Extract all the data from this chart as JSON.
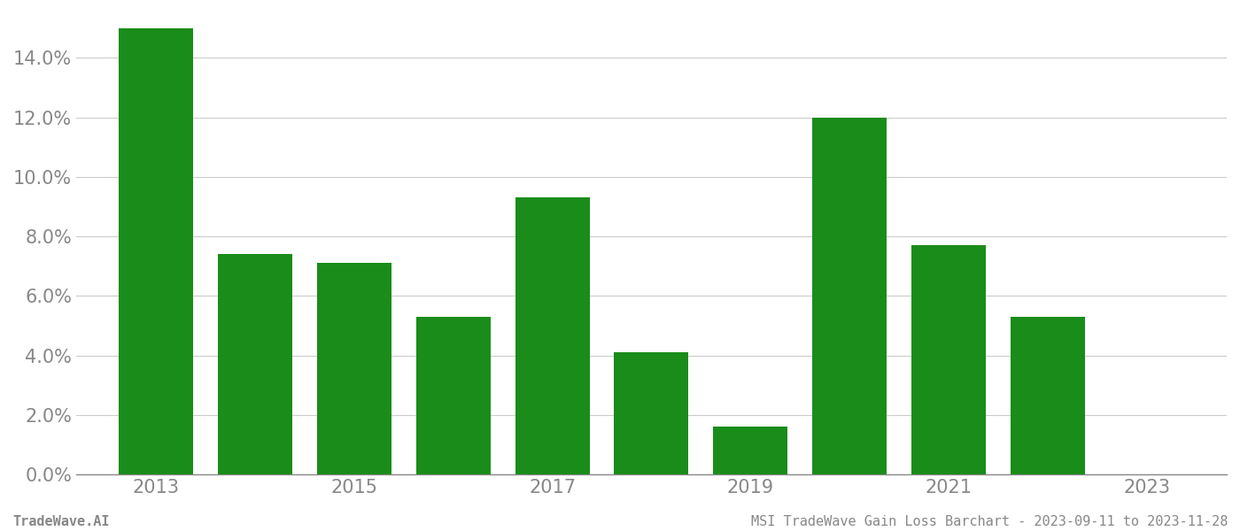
{
  "years": [
    2013,
    2014,
    2015,
    2016,
    2017,
    2018,
    2019,
    2020,
    2021,
    2022,
    2023
  ],
  "values": [
    0.15,
    0.074,
    0.071,
    0.053,
    0.093,
    0.041,
    0.016,
    0.12,
    0.077,
    0.053,
    0.0
  ],
  "bar_color": "#1a8c1a",
  "background_color": "#ffffff",
  "grid_color": "#cccccc",
  "axis_color": "#888888",
  "tick_label_color": "#888888",
  "ylim": [
    0.0,
    0.155
  ],
  "ytick_values": [
    0.0,
    0.02,
    0.04,
    0.06,
    0.08,
    0.1,
    0.12,
    0.14
  ],
  "xtick_labels": [
    "2013",
    "2015",
    "2017",
    "2019",
    "2021",
    "2023"
  ],
  "xtick_positions": [
    2013,
    2015,
    2017,
    2019,
    2021,
    2023
  ],
  "footer_left": "TradeWave.AI",
  "footer_right": "MSI TradeWave Gain Loss Barchart - 2023-09-11 to 2023-11-28",
  "footer_color": "#888888",
  "bar_width": 0.75,
  "tick_fontsize": 15,
  "footer_fontsize": 11
}
